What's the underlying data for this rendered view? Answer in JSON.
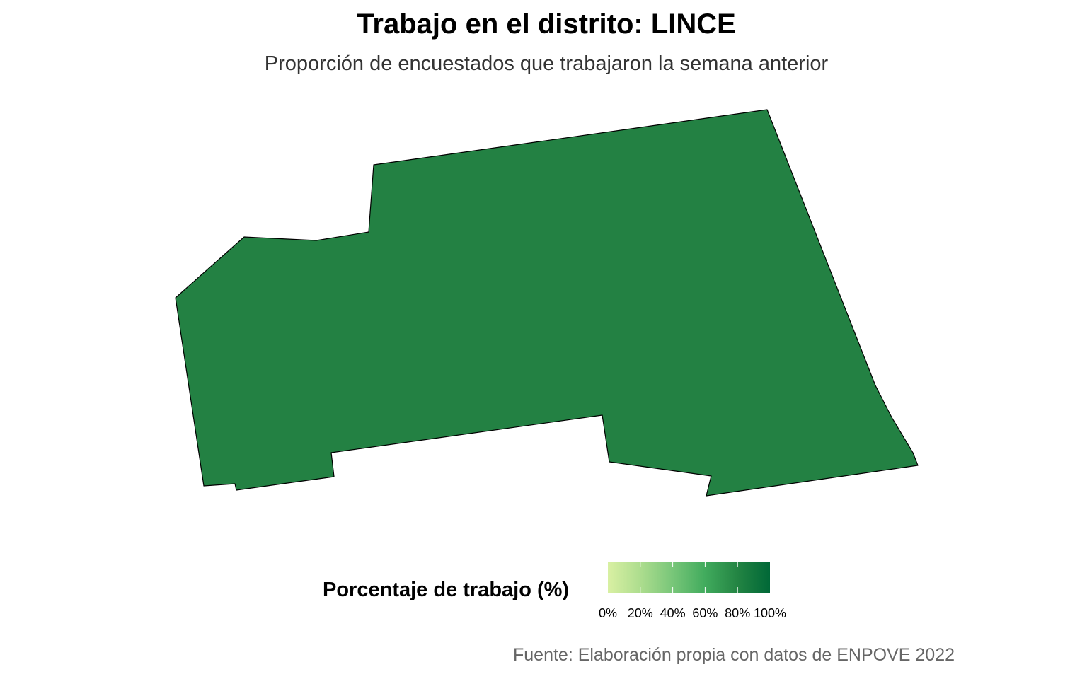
{
  "title": "Trabajo en el distrito: LINCE",
  "subtitle": "Proporción de encuestados que trabajaron la semana anterior",
  "map": {
    "region_name": "LINCE",
    "fill_color": "#238143",
    "border_color": "#000000"
  },
  "legend": {
    "title": "Porcentaje de trabajo (%)",
    "palette": [
      "#d9f0a3",
      "#addd8e",
      "#78c679",
      "#41ab5d",
      "#238443",
      "#006837"
    ],
    "ticks": [
      "0%",
      "20%",
      "40%",
      "60%",
      "80%",
      "100%"
    ]
  },
  "chart_data": {
    "type": "choropleth",
    "regions": [
      {
        "name": "LINCE",
        "value_percent": 80
      }
    ],
    "scale": {
      "min": 0,
      "max": 100,
      "unit": "%"
    },
    "legend_placement": "bottom"
  },
  "caption": "Fuente: Elaboración propia con datos de ENPOVE 2022"
}
